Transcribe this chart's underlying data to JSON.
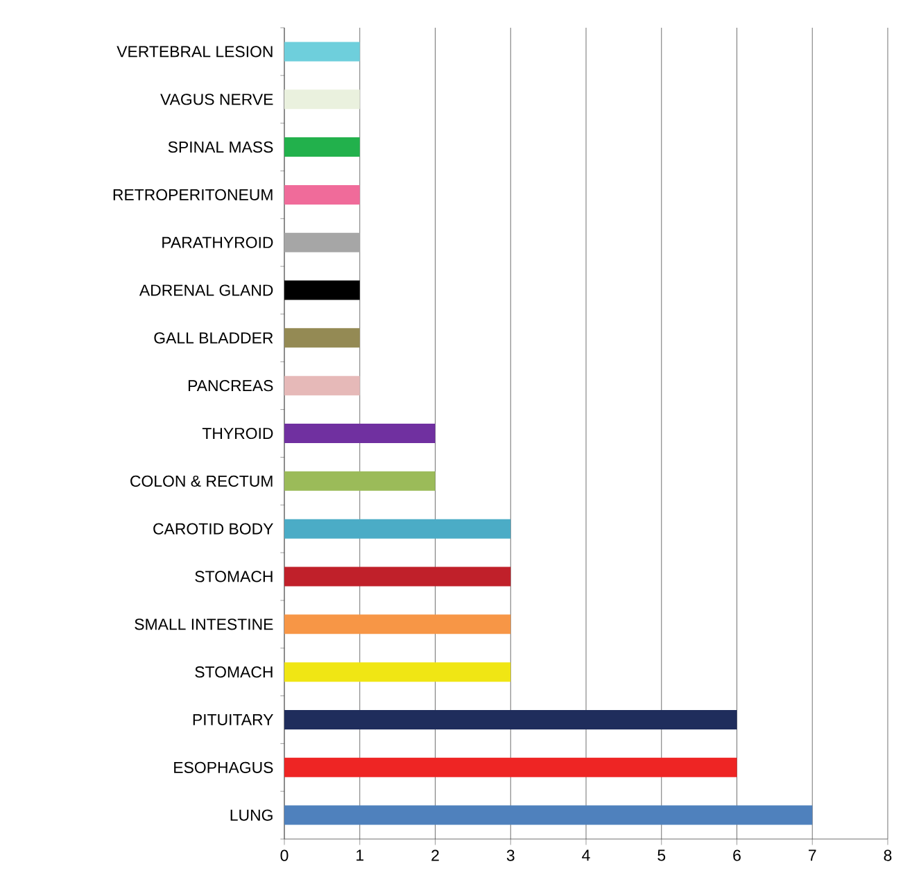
{
  "chart_data": {
    "type": "bar",
    "orientation": "horizontal",
    "categories": [
      "VERTEBRAL LESION",
      "VAGUS NERVE",
      "SPINAL MASS",
      "RETROPERITONEUM",
      "PARATHYROID",
      "ADRENAL GLAND",
      "GALL BLADDER",
      "PANCREAS",
      "THYROID",
      "COLON & RECTUM",
      "CAROTID BODY",
      "STOMACH",
      "SMALL INTESTINE",
      "STOMACH",
      "PITUITARY",
      "ESOPHAGUS",
      "LUNG"
    ],
    "values": [
      1,
      1,
      1,
      1,
      1,
      1,
      1,
      1,
      2,
      2,
      3,
      3,
      3,
      3,
      6,
      6,
      7
    ],
    "colors": [
      "#6ecfdc",
      "#eaf1de",
      "#22b14c",
      "#f06b9a",
      "#a6a6a6",
      "#000000",
      "#948a54",
      "#e6b9b8",
      "#7030a0",
      "#9bbb59",
      "#4bacc6",
      "#c0202a",
      "#f79646",
      "#f0e614",
      "#1f2d5c",
      "#ee2524",
      "#4f81bd"
    ],
    "xlim": [
      0,
      8
    ],
    "xticks": [
      0,
      1,
      2,
      3,
      4,
      5,
      6,
      7,
      8
    ],
    "grid": "x"
  }
}
